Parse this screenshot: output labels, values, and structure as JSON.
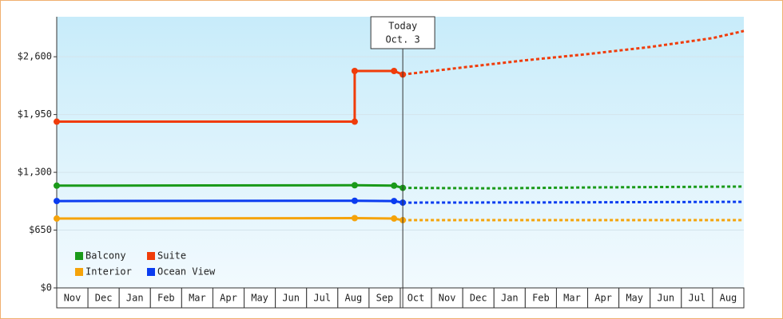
{
  "chart_data": {
    "type": "line",
    "categories": [
      "Nov",
      "Dec",
      "Jan",
      "Feb",
      "Mar",
      "Apr",
      "May",
      "Jun",
      "Jul",
      "Aug",
      "Sep",
      "Oct",
      "Nov",
      "Dec",
      "Jan",
      "Feb",
      "Mar",
      "Apr",
      "May",
      "Jun",
      "Jul",
      "Aug"
    ],
    "xlim": [
      0,
      22
    ],
    "ylim": [
      0,
      3050
    ],
    "yticks": [
      {
        "value": 0,
        "label": "$0"
      },
      {
        "value": 650,
        "label": "$650"
      },
      {
        "value": 1300,
        "label": "$1,300"
      },
      {
        "value": 1950,
        "label": "$1,950"
      },
      {
        "value": 2600,
        "label": "$2,600"
      }
    ],
    "grid": true,
    "legend": "lower-left",
    "today": {
      "label": "Today",
      "date": "Oct. 3",
      "x": 11.08
    },
    "series": [
      {
        "name": "Balcony",
        "color": "#1a9a1a",
        "x": [
          0,
          9.54,
          10.8,
          11.08
        ],
        "values": [
          1150,
          1155,
          1150,
          1125
        ],
        "forecast_x": [
          11.08,
          14,
          17,
          19.5,
          22
        ],
        "forecast_values": [
          1125,
          1120,
          1130,
          1135,
          1140
        ]
      },
      {
        "name": "Suite",
        "color": "#f03c0a",
        "x": [
          0,
          9.54,
          9.54,
          10.8,
          11.08
        ],
        "values": [
          1870,
          1870,
          2440,
          2440,
          2400
        ],
        "forecast_x": [
          11.08,
          13,
          15,
          17,
          19,
          21,
          22
        ],
        "forecast_values": [
          2400,
          2480,
          2560,
          2630,
          2710,
          2810,
          2890
        ]
      },
      {
        "name": "Interior",
        "color": "#f5a30a",
        "x": [
          0,
          9.54,
          10.8,
          11.08
        ],
        "values": [
          780,
          785,
          780,
          762
        ],
        "forecast_x": [
          11.08,
          16.5,
          22
        ],
        "forecast_values": [
          762,
          762,
          762
        ]
      },
      {
        "name": "Ocean View",
        "color": "#0a3cf0",
        "x": [
          0,
          9.54,
          10.8,
          11.08
        ],
        "values": [
          977,
          980,
          977,
          959
        ],
        "forecast_x": [
          11.08,
          16.5,
          22
        ],
        "forecast_values": [
          959,
          962,
          968
        ]
      }
    ]
  }
}
